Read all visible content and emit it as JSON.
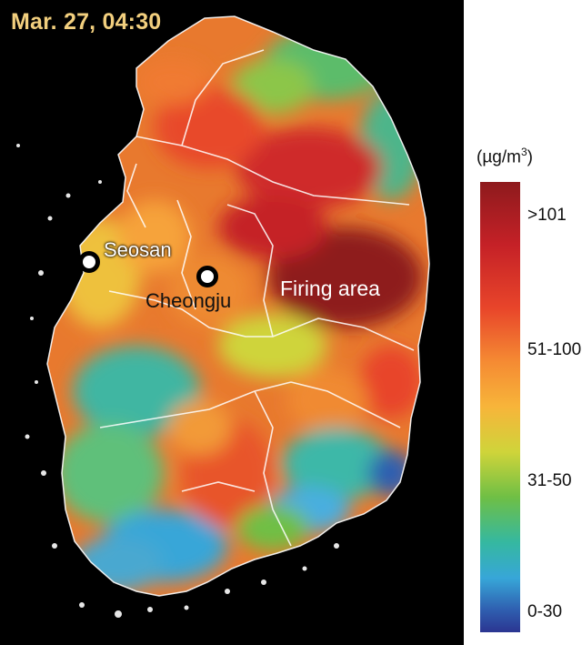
{
  "map": {
    "timestamp": "Mar. 27, 04:30",
    "cities": [
      {
        "name": "Seosan"
      },
      {
        "name": "Cheongju"
      }
    ],
    "area_label": "Firing area"
  },
  "legend": {
    "unit_prefix": "(µg/m",
    "unit_exponent": "3",
    "unit_suffix": ")",
    "classes": [
      ">101",
      "51-100",
      "31-50",
      "0-30"
    ],
    "colors": {
      "high": "#8e1a1d",
      "upper": "#e8452a",
      "mid": "#f7b53a",
      "lower": "#6fbf45",
      "low": "#37a6d8",
      "lowest": "#2b3591"
    }
  }
}
